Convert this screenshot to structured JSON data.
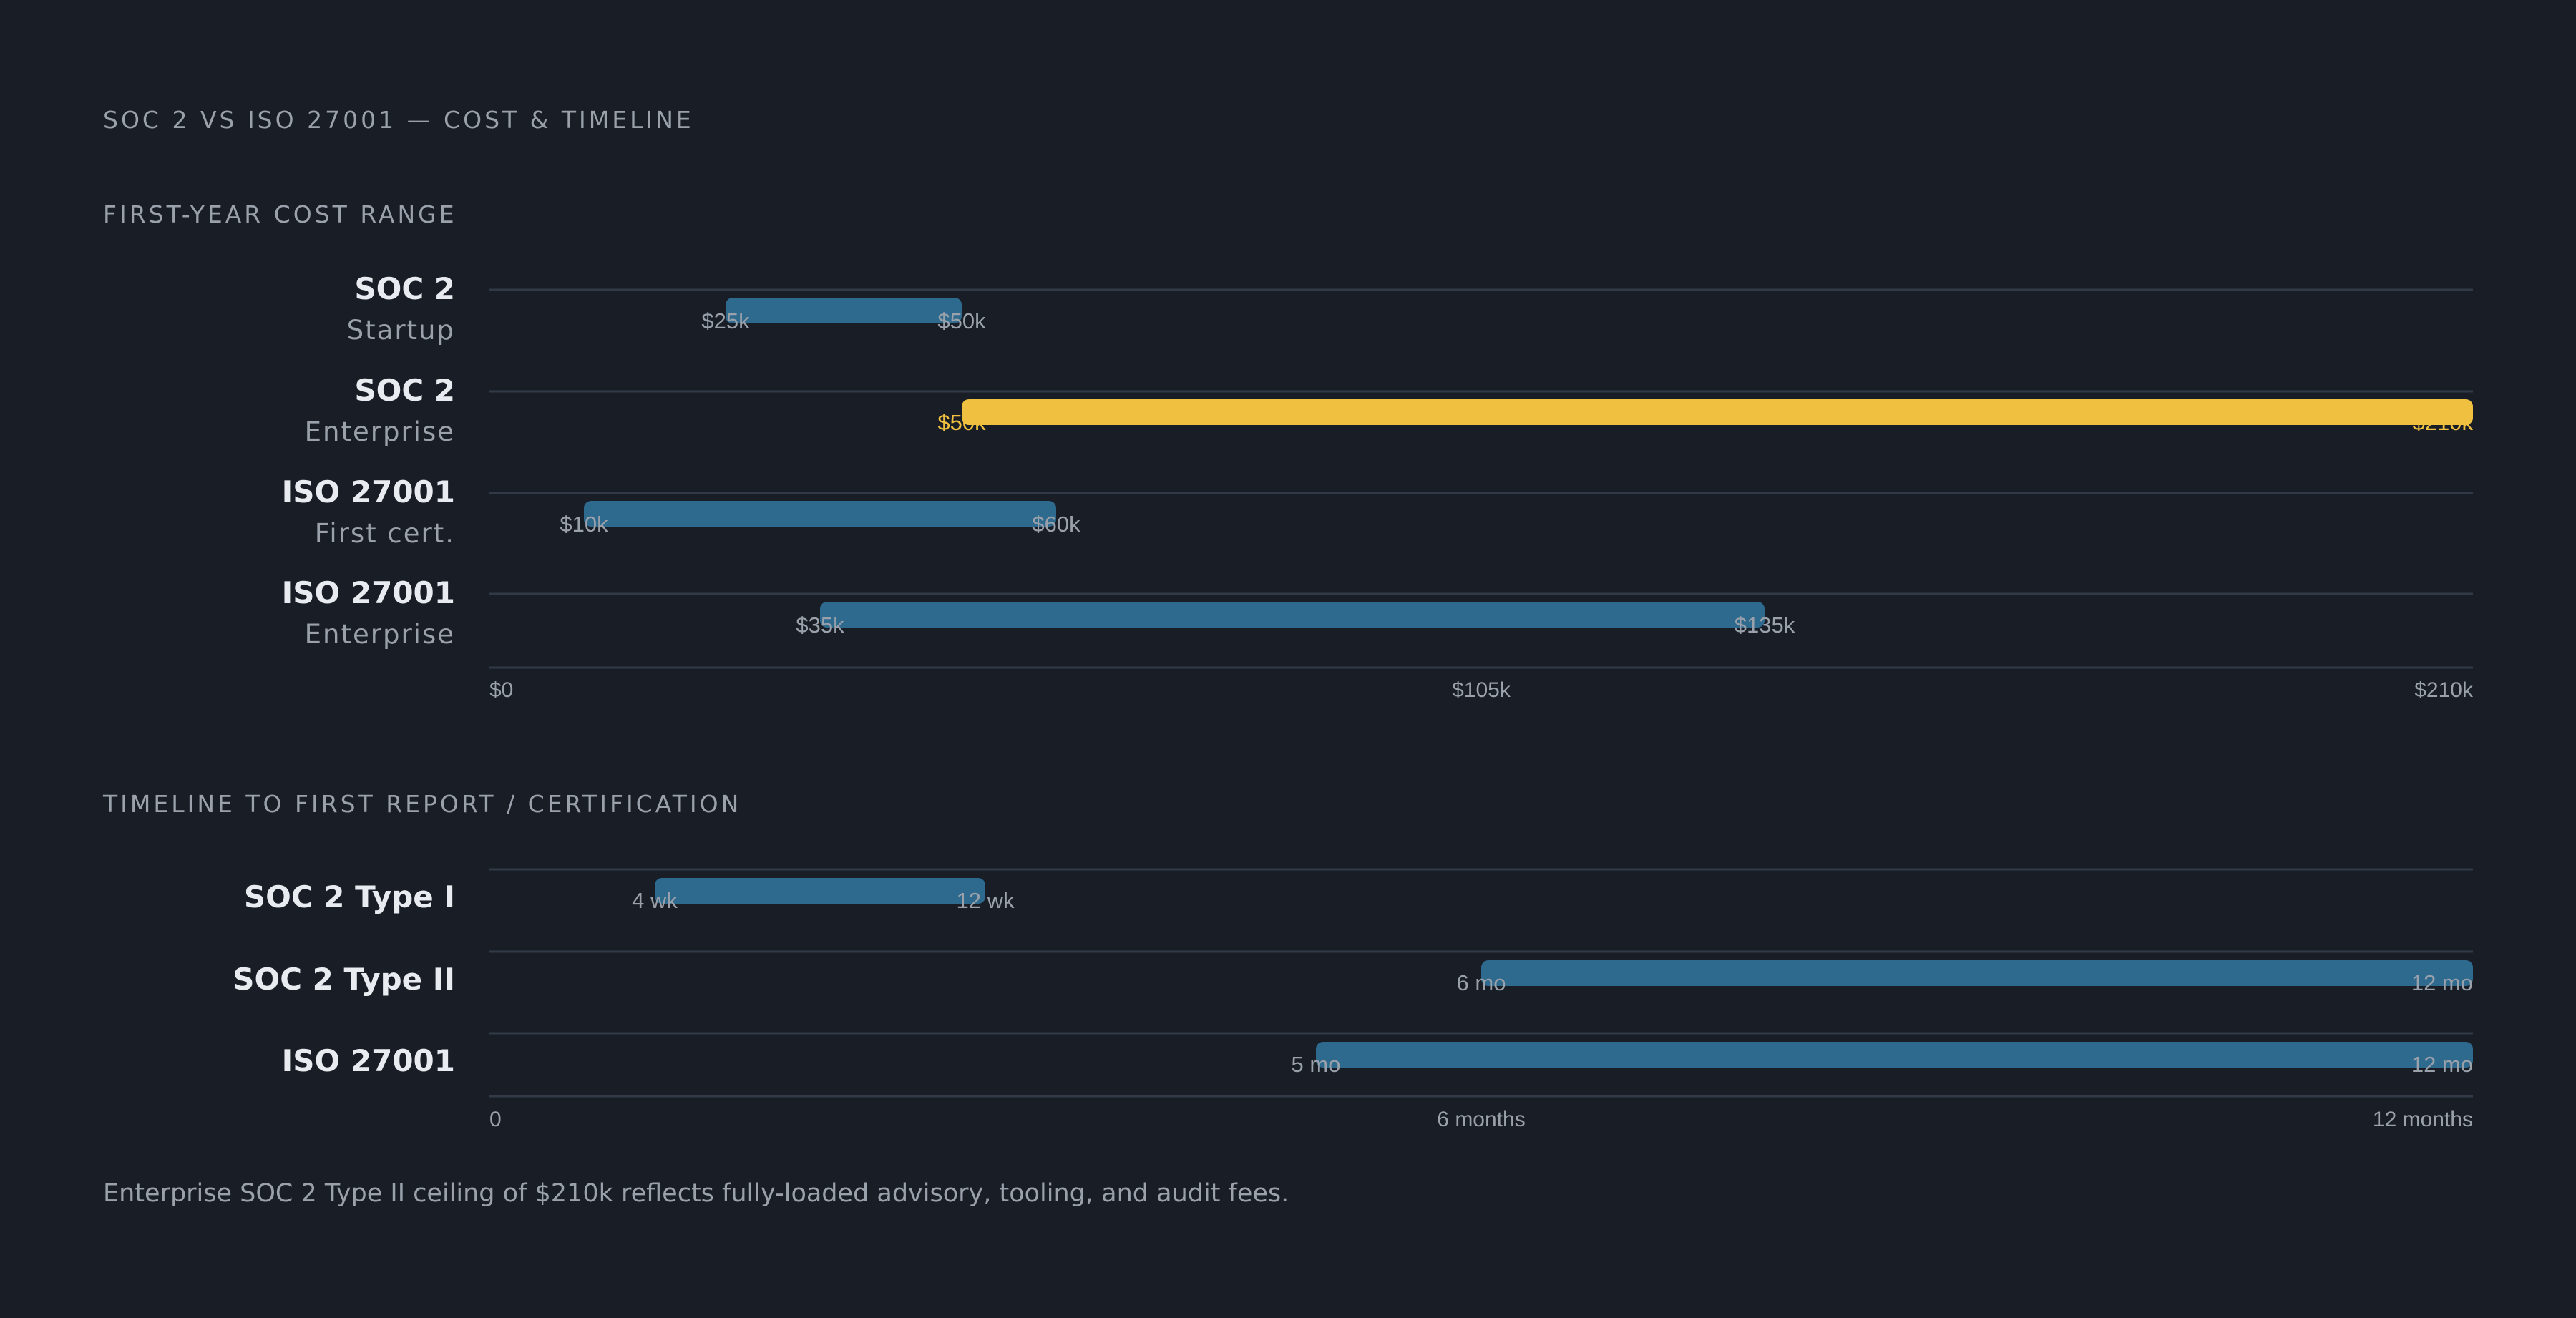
{
  "title": "SOC 2 VS ISO 27001 — COST & TIMELINE",
  "footnote": "Enterprise SOC 2 Type II ceiling of $210k reflects fully-loaded advisory, tooling, and audit fees.",
  "colors": {
    "background": "#181d26",
    "bar": "#2e6a8e",
    "highlight": "#f0c040",
    "grid": "#333a47",
    "muted": "#9aa1ab",
    "text": "#e8ebf0"
  },
  "chart_data": [
    {
      "type": "range-bar",
      "title": "FIRST-YEAR COST RANGE",
      "xlim": [
        0,
        210
      ],
      "x_unit": "$k",
      "x_ticks": [
        {
          "value": 0,
          "label": "$0"
        },
        {
          "value": 105,
          "label": "$105k"
        },
        {
          "value": 210,
          "label": "$210k"
        }
      ],
      "rows": [
        {
          "name": "SOC 2",
          "sub": "Startup",
          "start": 25,
          "end": 50,
          "start_label": "$25k",
          "end_label": "$50k",
          "highlight": false
        },
        {
          "name": "SOC 2",
          "sub": "Enterprise",
          "start": 50,
          "end": 210,
          "start_label": "$50k",
          "end_label": "$210k",
          "highlight": true
        },
        {
          "name": "ISO 27001",
          "sub": "First cert.",
          "start": 10,
          "end": 60,
          "start_label": "$10k",
          "end_label": "$60k",
          "highlight": false
        },
        {
          "name": "ISO 27001",
          "sub": "Enterprise",
          "start": 35,
          "end": 135,
          "start_label": "$35k",
          "end_label": "$135k",
          "highlight": false
        }
      ]
    },
    {
      "type": "range-bar",
      "title": "TIMELINE TO FIRST REPORT / CERTIFICATION",
      "xlim": [
        0,
        12
      ],
      "x_unit": "months",
      "x_ticks": [
        {
          "value": 0,
          "label": "0"
        },
        {
          "value": 6,
          "label": "6 months"
        },
        {
          "value": 12,
          "label": "12 months"
        }
      ],
      "rows": [
        {
          "name": "SOC 2 Type I",
          "sub": "",
          "start": 1,
          "end": 3,
          "start_label": "4 wk",
          "end_label": "12 wk",
          "highlight": false
        },
        {
          "name": "SOC 2 Type II",
          "sub": "",
          "start": 6,
          "end": 12,
          "start_label": "6 mo",
          "end_label": "12 mo",
          "highlight": false
        },
        {
          "name": "ISO 27001",
          "sub": "",
          "start": 5,
          "end": 12,
          "start_label": "5 mo",
          "end_label": "12 mo",
          "highlight": false
        }
      ]
    }
  ]
}
